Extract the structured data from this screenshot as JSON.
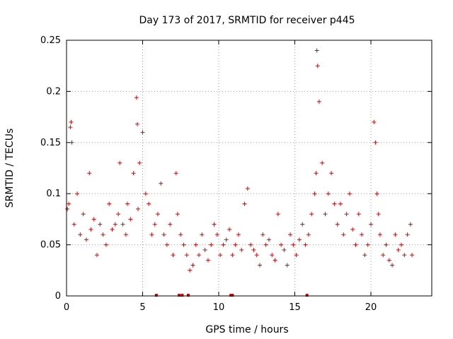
{
  "chart_data": {
    "type": "scatter",
    "title": "Day 173 of 2017, SRMTID for receiver p445",
    "xlabel": "GPS time / hours",
    "ylabel": "SRMTID / TECUs",
    "xlim": [
      0,
      24
    ],
    "ylim": [
      0,
      0.25
    ],
    "xticks": [
      0,
      5,
      10,
      15,
      20
    ],
    "yticks": [
      0,
      0.05,
      0.1,
      0.15,
      0.2,
      0.25
    ],
    "xtick_labels": [
      "0",
      "5",
      "10",
      "15",
      "20"
    ],
    "ytick_labels": [
      "0",
      "0.05",
      "0.1",
      "0.15",
      "0.2",
      "0.25"
    ],
    "grid": true,
    "marker": "+",
    "color": "#e00000",
    "series": [
      {
        "name": "SRMTID p445",
        "x": [
          0.05,
          0.15,
          0.25,
          0.3,
          0.35,
          0.5,
          0.7,
          0.9,
          1.1,
          1.3,
          1.5,
          1.6,
          1.8,
          2.0,
          2.2,
          2.4,
          2.6,
          2.8,
          3.0,
          3.2,
          3.4,
          3.5,
          3.7,
          3.9,
          4.0,
          4.2,
          4.4,
          4.6,
          4.65,
          4.7,
          4.8,
          5.0,
          5.2,
          5.4,
          5.6,
          5.8,
          6.0,
          6.2,
          6.4,
          6.6,
          6.8,
          7.0,
          7.2,
          7.3,
          7.5,
          7.7,
          7.9,
          8.1,
          8.3,
          8.5,
          8.7,
          8.9,
          9.1,
          9.3,
          9.5,
          9.7,
          9.9,
          10.1,
          10.3,
          10.5,
          10.7,
          10.9,
          11.1,
          11.3,
          11.5,
          11.7,
          11.9,
          12.1,
          12.3,
          12.5,
          12.7,
          12.9,
          13.1,
          13.3,
          13.5,
          13.7,
          13.9,
          14.1,
          14.3,
          14.5,
          14.7,
          14.9,
          15.1,
          15.3,
          15.5,
          15.7,
          15.9,
          16.1,
          16.3,
          16.4,
          16.45,
          16.5,
          16.6,
          16.8,
          17.0,
          17.2,
          17.4,
          17.6,
          17.8,
          18.0,
          18.2,
          18.4,
          18.6,
          18.8,
          19.0,
          19.2,
          19.4,
          19.6,
          19.8,
          20.0,
          20.2,
          20.3,
          20.4,
          20.5,
          20.6,
          20.8,
          21.0,
          21.2,
          21.4,
          21.6,
          21.8,
          22.0,
          22.2,
          22.4,
          22.6,
          22.7
        ],
        "y": [
          0.085,
          0.09,
          0.165,
          0.17,
          0.15,
          0.07,
          0.1,
          0.06,
          0.08,
          0.055,
          0.12,
          0.065,
          0.075,
          0.04,
          0.07,
          0.06,
          0.05,
          0.09,
          0.065,
          0.07,
          0.08,
          0.13,
          0.07,
          0.06,
          0.09,
          0.075,
          0.12,
          0.194,
          0.168,
          0.085,
          0.13,
          0.16,
          0.1,
          0.09,
          0.06,
          0.07,
          0.08,
          0.11,
          0.06,
          0.05,
          0.07,
          0.04,
          0.12,
          0.08,
          0.06,
          0.05,
          0.04,
          0.025,
          0.03,
          0.05,
          0.04,
          0.06,
          0.045,
          0.035,
          0.05,
          0.07,
          0.06,
          0.04,
          0.05,
          0.055,
          0.065,
          0.04,
          0.05,
          0.06,
          0.045,
          0.09,
          0.105,
          0.05,
          0.045,
          0.04,
          0.03,
          0.06,
          0.05,
          0.055,
          0.04,
          0.035,
          0.08,
          0.05,
          0.045,
          0.03,
          0.06,
          0.05,
          0.04,
          0.055,
          0.07,
          0.05,
          0.06,
          0.08,
          0.1,
          0.12,
          0.24,
          0.225,
          0.19,
          0.13,
          0.08,
          0.1,
          0.12,
          0.09,
          0.07,
          0.09,
          0.06,
          0.08,
          0.1,
          0.065,
          0.05,
          0.08,
          0.06,
          0.04,
          0.05,
          0.07,
          0.17,
          0.15,
          0.1,
          0.08,
          0.06,
          0.04,
          0.05,
          0.035,
          0.03,
          0.06,
          0.045,
          0.05,
          0.04,
          0.06,
          0.07,
          0.04
        ]
      }
    ],
    "zero_markers_x": [
      5.9,
      7.4,
      7.6,
      8.0,
      10.8,
      10.9,
      15.8
    ]
  }
}
